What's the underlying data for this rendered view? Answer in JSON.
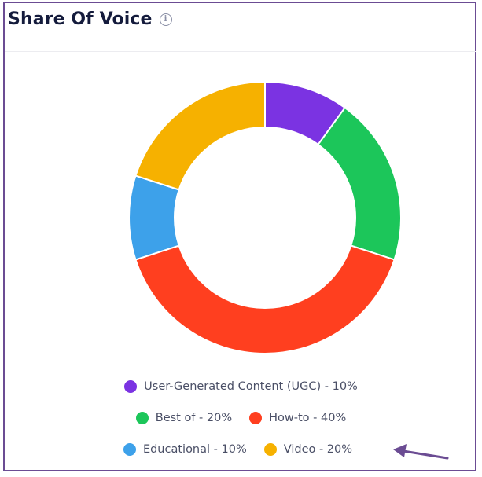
{
  "header": {
    "title": "Share Of Voice",
    "info_icon": "info-icon"
  },
  "chart_data": {
    "type": "pie",
    "variant": "donut",
    "title": "Share Of Voice",
    "categories": [
      "User-Generated Content (UGC)",
      "Best of",
      "How-to",
      "Educational",
      "Video"
    ],
    "values": [
      10,
      20,
      40,
      10,
      20
    ],
    "unit": "%",
    "colors": [
      "#7b33e2",
      "#1cc65a",
      "#ff3f1f",
      "#3da1ea",
      "#f6b100"
    ],
    "start_angle": "top, clockwise",
    "legend_position": "bottom"
  },
  "legend": {
    "items": [
      {
        "label": "User-Generated Content (UGC) - 10%",
        "color": "#7b33e2"
      },
      {
        "label": "Best of - 20%",
        "color": "#1cc65a"
      },
      {
        "label": "How-to - 40%",
        "color": "#ff3f1f"
      },
      {
        "label": "Educational - 10%",
        "color": "#3da1ea"
      },
      {
        "label": "Video - 20%",
        "color": "#f6b100"
      }
    ]
  },
  "annotation": {
    "type": "arrow",
    "color": "#6b4c93",
    "points_to": "Video - 20%"
  }
}
